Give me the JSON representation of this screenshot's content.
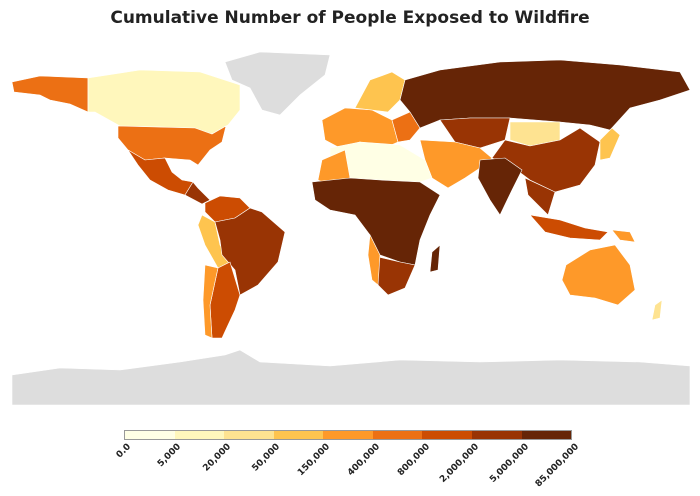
{
  "title": "Cumulative Number of People Exposed to Wildfire",
  "legend": {
    "colors": [
      "#ffffe5",
      "#fff7bc",
      "#fee391",
      "#fec44f",
      "#fe9929",
      "#ec7014",
      "#cc4c02",
      "#993404",
      "#662506"
    ],
    "ticks": [
      "0.0",
      "5,000",
      "20,000",
      "50,000",
      "150,000",
      "400,000",
      "800,000",
      "2,000,000",
      "5,000,000",
      "85,000,000"
    ]
  },
  "no_data_color": "#dddddd"
}
